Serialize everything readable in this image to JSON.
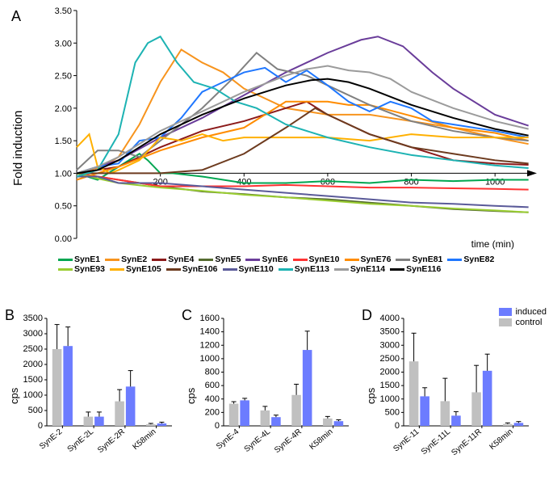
{
  "panelA": {
    "label": "A",
    "ylabel": "Fold induction",
    "xlabel": "time (min)",
    "ylim": [
      0.0,
      3.5
    ],
    "ytick_step": 0.5,
    "yticks": [
      "0.00",
      "0.50",
      "1.00",
      "1.50",
      "2.00",
      "2.50",
      "3.00",
      "3.50"
    ],
    "xlim": [
      0,
      1100
    ],
    "xticks": [
      200,
      400,
      600,
      800,
      1000
    ],
    "background_color": "#ffffff",
    "axis_color": "#000000",
    "label_fontsize": 15,
    "tick_fontsize": 11,
    "line_width": 2,
    "series": {
      "SynE1": {
        "color": "#00a651",
        "data": [
          [
            0,
            1.0
          ],
          [
            50,
            0.9
          ],
          [
            100,
            1.1
          ],
          [
            150,
            1.3
          ],
          [
            170,
            1.2
          ],
          [
            200,
            1.0
          ],
          [
            230,
            1.0
          ],
          [
            300,
            0.95
          ],
          [
            400,
            0.85
          ],
          [
            500,
            0.85
          ],
          [
            600,
            0.88
          ],
          [
            700,
            0.85
          ],
          [
            800,
            0.9
          ],
          [
            900,
            0.88
          ],
          [
            1000,
            0.9
          ],
          [
            1080,
            0.9
          ]
        ]
      },
      "SynE2": {
        "color": "#f7941e",
        "data": [
          [
            0,
            1.0
          ],
          [
            60,
            1.1
          ],
          [
            100,
            1.25
          ],
          [
            150,
            1.75
          ],
          [
            200,
            2.4
          ],
          [
            250,
            2.9
          ],
          [
            300,
            2.7
          ],
          [
            350,
            2.55
          ],
          [
            400,
            2.3
          ],
          [
            500,
            2.0
          ],
          [
            600,
            1.9
          ],
          [
            700,
            1.9
          ],
          [
            800,
            1.8
          ],
          [
            900,
            1.7
          ],
          [
            1000,
            1.55
          ],
          [
            1080,
            1.45
          ]
        ]
      },
      "SynE4": {
        "color": "#8b1a1a",
        "data": [
          [
            0,
            1.0
          ],
          [
            50,
            1.05
          ],
          [
            100,
            1.1
          ],
          [
            200,
            1.4
          ],
          [
            300,
            1.65
          ],
          [
            400,
            1.8
          ],
          [
            500,
            2.0
          ],
          [
            550,
            2.1
          ],
          [
            600,
            1.9
          ],
          [
            700,
            1.6
          ],
          [
            800,
            1.4
          ],
          [
            900,
            1.2
          ],
          [
            1000,
            1.15
          ],
          [
            1080,
            1.13
          ]
        ]
      },
      "SynE5": {
        "color": "#556b2f",
        "data": [
          [
            0,
            1.0
          ],
          [
            50,
            0.95
          ],
          [
            100,
            0.9
          ],
          [
            200,
            0.8
          ],
          [
            300,
            0.72
          ],
          [
            400,
            0.68
          ],
          [
            500,
            0.63
          ],
          [
            600,
            0.6
          ],
          [
            700,
            0.55
          ],
          [
            800,
            0.5
          ],
          [
            900,
            0.45
          ],
          [
            1000,
            0.42
          ],
          [
            1080,
            0.4
          ]
        ]
      },
      "SynE6": {
        "color": "#6a3d9a",
        "data": [
          [
            0,
            1.0
          ],
          [
            100,
            1.2
          ],
          [
            200,
            1.55
          ],
          [
            300,
            1.85
          ],
          [
            400,
            2.2
          ],
          [
            500,
            2.55
          ],
          [
            600,
            2.85
          ],
          [
            680,
            3.05
          ],
          [
            720,
            3.1
          ],
          [
            780,
            2.95
          ],
          [
            850,
            2.55
          ],
          [
            900,
            2.3
          ],
          [
            1000,
            1.9
          ],
          [
            1080,
            1.73
          ]
        ]
      },
      "SynE10": {
        "color": "#ff3333",
        "data": [
          [
            0,
            1.0
          ],
          [
            50,
            0.95
          ],
          [
            100,
            0.9
          ],
          [
            150,
            0.85
          ],
          [
            200,
            0.8
          ],
          [
            300,
            0.8
          ],
          [
            400,
            0.8
          ],
          [
            500,
            0.82
          ],
          [
            600,
            0.8
          ],
          [
            700,
            0.78
          ],
          [
            800,
            0.78
          ],
          [
            900,
            0.77
          ],
          [
            1000,
            0.76
          ],
          [
            1080,
            0.75
          ]
        ]
      },
      "SynE76": {
        "color": "#ff8c00",
        "data": [
          [
            0,
            0.9
          ],
          [
            50,
            1.0
          ],
          [
            100,
            1.1
          ],
          [
            200,
            1.35
          ],
          [
            300,
            1.55
          ],
          [
            400,
            1.7
          ],
          [
            500,
            2.1
          ],
          [
            600,
            2.1
          ],
          [
            650,
            2.05
          ],
          [
            700,
            2.05
          ],
          [
            800,
            1.88
          ],
          [
            900,
            1.7
          ],
          [
            1000,
            1.62
          ],
          [
            1080,
            1.5
          ]
        ]
      },
      "SynE81": {
        "color": "#808080",
        "data": [
          [
            0,
            1.05
          ],
          [
            50,
            1.35
          ],
          [
            100,
            1.35
          ],
          [
            150,
            1.25
          ],
          [
            200,
            1.5
          ],
          [
            300,
            2.0
          ],
          [
            380,
            2.5
          ],
          [
            430,
            2.85
          ],
          [
            480,
            2.6
          ],
          [
            550,
            2.5
          ],
          [
            600,
            2.35
          ],
          [
            700,
            2.05
          ],
          [
            800,
            1.8
          ],
          [
            900,
            1.65
          ],
          [
            1000,
            1.55
          ],
          [
            1080,
            1.5
          ]
        ]
      },
      "SynE82": {
        "color": "#1f77ff",
        "data": [
          [
            0,
            1.0
          ],
          [
            50,
            1.1
          ],
          [
            100,
            1.15
          ],
          [
            150,
            1.5
          ],
          [
            200,
            1.55
          ],
          [
            250,
            1.85
          ],
          [
            300,
            2.25
          ],
          [
            350,
            2.4
          ],
          [
            400,
            2.55
          ],
          [
            450,
            2.62
          ],
          [
            500,
            2.4
          ],
          [
            550,
            2.58
          ],
          [
            600,
            2.35
          ],
          [
            650,
            2.1
          ],
          [
            700,
            1.95
          ],
          [
            750,
            2.1
          ],
          [
            800,
            2.0
          ],
          [
            850,
            1.8
          ],
          [
            900,
            1.75
          ],
          [
            1000,
            1.65
          ],
          [
            1080,
            1.55
          ]
        ]
      },
      "SynE93": {
        "color": "#9acd32",
        "data": [
          [
            0,
            1.0
          ],
          [
            50,
            0.92
          ],
          [
            100,
            0.85
          ],
          [
            200,
            0.78
          ],
          [
            300,
            0.73
          ],
          [
            400,
            0.67
          ],
          [
            500,
            0.63
          ],
          [
            600,
            0.58
          ],
          [
            700,
            0.53
          ],
          [
            800,
            0.5
          ],
          [
            900,
            0.46
          ],
          [
            1000,
            0.43
          ],
          [
            1080,
            0.4
          ]
        ]
      },
      "SynE105": {
        "color": "#ffb000",
        "data": [
          [
            0,
            1.4
          ],
          [
            30,
            1.6
          ],
          [
            50,
            1.1
          ],
          [
            80,
            1.0
          ],
          [
            100,
            1.05
          ],
          [
            150,
            1.2
          ],
          [
            200,
            1.55
          ],
          [
            250,
            1.5
          ],
          [
            300,
            1.6
          ],
          [
            350,
            1.5
          ],
          [
            400,
            1.55
          ],
          [
            450,
            1.55
          ],
          [
            500,
            1.55
          ],
          [
            600,
            1.55
          ],
          [
            700,
            1.5
          ],
          [
            800,
            1.6
          ],
          [
            900,
            1.55
          ],
          [
            1000,
            1.55
          ],
          [
            1080,
            1.55
          ]
        ]
      },
      "SynE106": {
        "color": "#6d3b1f",
        "data": [
          [
            0,
            1.0
          ],
          [
            100,
            1.0
          ],
          [
            200,
            1.0
          ],
          [
            300,
            1.05
          ],
          [
            400,
            1.3
          ],
          [
            500,
            1.7
          ],
          [
            570,
            2.0
          ],
          [
            600,
            1.9
          ],
          [
            650,
            1.75
          ],
          [
            700,
            1.6
          ],
          [
            800,
            1.4
          ],
          [
            900,
            1.3
          ],
          [
            1000,
            1.2
          ],
          [
            1080,
            1.15
          ]
        ]
      },
      "SynE110": {
        "color": "#5a5a99",
        "data": [
          [
            0,
            0.95
          ],
          [
            50,
            0.95
          ],
          [
            100,
            0.85
          ],
          [
            200,
            0.85
          ],
          [
            300,
            0.8
          ],
          [
            400,
            0.75
          ],
          [
            500,
            0.7
          ],
          [
            600,
            0.65
          ],
          [
            700,
            0.6
          ],
          [
            800,
            0.55
          ],
          [
            900,
            0.53
          ],
          [
            1000,
            0.5
          ],
          [
            1080,
            0.48
          ]
        ]
      },
      "SynE113": {
        "color": "#1db3b3",
        "data": [
          [
            0,
            0.95
          ],
          [
            50,
            1.05
          ],
          [
            100,
            1.6
          ],
          [
            140,
            2.7
          ],
          [
            170,
            3.0
          ],
          [
            200,
            3.1
          ],
          [
            240,
            2.7
          ],
          [
            280,
            2.4
          ],
          [
            330,
            2.3
          ],
          [
            380,
            2.1
          ],
          [
            430,
            2.0
          ],
          [
            500,
            1.75
          ],
          [
            600,
            1.55
          ],
          [
            700,
            1.4
          ],
          [
            800,
            1.28
          ],
          [
            900,
            1.2
          ],
          [
            1000,
            1.12
          ],
          [
            1080,
            1.08
          ]
        ]
      },
      "SynE114": {
        "color": "#9b9b9b",
        "data": [
          [
            0,
            1.0
          ],
          [
            50,
            1.1
          ],
          [
            100,
            1.25
          ],
          [
            200,
            1.65
          ],
          [
            300,
            1.95
          ],
          [
            400,
            2.25
          ],
          [
            500,
            2.5
          ],
          [
            550,
            2.6
          ],
          [
            600,
            2.65
          ],
          [
            650,
            2.58
          ],
          [
            700,
            2.55
          ],
          [
            750,
            2.45
          ],
          [
            800,
            2.25
          ],
          [
            900,
            2.0
          ],
          [
            1000,
            1.8
          ],
          [
            1080,
            1.68
          ]
        ]
      },
      "SynE116": {
        "color": "#000000",
        "data": [
          [
            0,
            1.0
          ],
          [
            50,
            1.05
          ],
          [
            100,
            1.2
          ],
          [
            200,
            1.6
          ],
          [
            300,
            1.9
          ],
          [
            400,
            2.15
          ],
          [
            500,
            2.35
          ],
          [
            560,
            2.43
          ],
          [
            600,
            2.45
          ],
          [
            650,
            2.4
          ],
          [
            700,
            2.3
          ],
          [
            800,
            2.05
          ],
          [
            900,
            1.85
          ],
          [
            1000,
            1.68
          ],
          [
            1080,
            1.58
          ]
        ]
      }
    },
    "legend": [
      "SynE1",
      "SynE2",
      "SynE4",
      "SynE5",
      "SynE6",
      "SynE10",
      "SynE76",
      "SynE81",
      "SynE82",
      "SynE93",
      "SynE105",
      "SynE106",
      "SynE110",
      "SynE113",
      "SynE114",
      "SynE116"
    ]
  },
  "barCommon": {
    "control_color": "#c0c0c0",
    "induced_color": "#6c7cff",
    "axis_color": "#000000",
    "error_color": "#000000",
    "bar_width": 0.35,
    "tick_fontsize": 10,
    "label_fontsize": 13
  },
  "miniLegend": {
    "induced": "induced",
    "control": "control"
  },
  "panelB": {
    "label": "B",
    "ylabel": "cps",
    "ylim": [
      0,
      3500
    ],
    "ytick_step": 500,
    "categories": [
      "SynE-2",
      "SynE-2L",
      "SynE-2R",
      "K58min"
    ],
    "control": [
      2500,
      300,
      800,
      50
    ],
    "induced": [
      2600,
      300,
      1280,
      80
    ],
    "control_err": [
      800,
      150,
      380,
      30
    ],
    "induced_err": [
      620,
      150,
      520,
      40
    ]
  },
  "panelC": {
    "label": "C",
    "ylabel": "cps",
    "ylim": [
      0,
      1600
    ],
    "ytick_step": 200,
    "categories": [
      "SynE-4",
      "SynE-4L",
      "SynE-4R",
      "K58min"
    ],
    "control": [
      330,
      230,
      460,
      110
    ],
    "induced": [
      380,
      130,
      1130,
      70
    ],
    "control_err": [
      30,
      60,
      160,
      30
    ],
    "induced_err": [
      30,
      30,
      280,
      20
    ]
  },
  "panelD": {
    "label": "D",
    "ylabel": "cps",
    "ylim": [
      0,
      4000
    ],
    "ytick_step": 500,
    "categories": [
      "SynE-11",
      "SynE-11L",
      "SynE-11R",
      "K58min"
    ],
    "control": [
      2400,
      920,
      1250,
      70
    ],
    "induced": [
      1100,
      380,
      2050,
      110
    ],
    "control_err": [
      1050,
      850,
      1000,
      40
    ],
    "induced_err": [
      320,
      150,
      620,
      50
    ]
  }
}
